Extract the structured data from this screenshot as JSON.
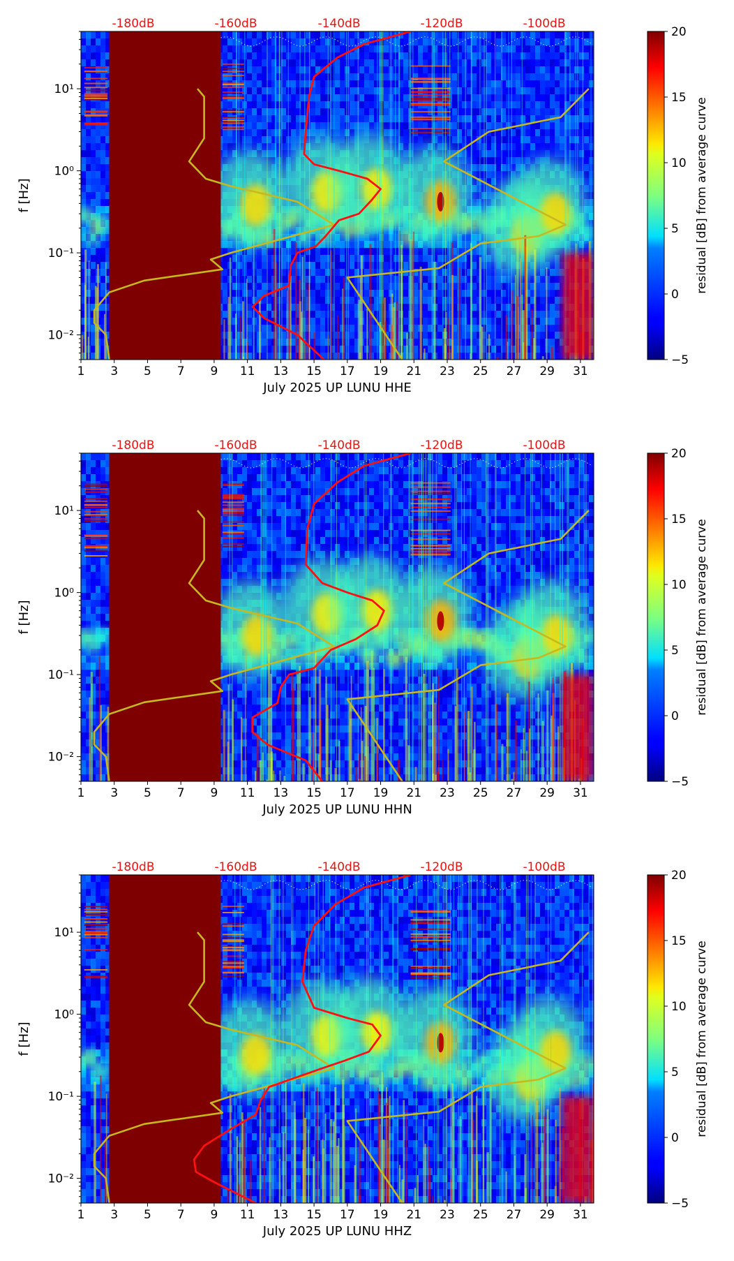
{
  "chart_data": [
    {
      "type": "heatmap",
      "xlabel": "July 2025 UP LUNU  HHE",
      "ylabel": "f [Hz]",
      "x_ticks": [
        "1",
        "3",
        "5",
        "7",
        "9",
        "11",
        "13",
        "15",
        "17",
        "19",
        "21",
        "23",
        "25",
        "27",
        "29",
        "31"
      ],
      "y_ticks": [
        "10⁻²",
        "10⁻¹",
        "10⁰",
        "10¹"
      ],
      "xlim": [
        1,
        31.8
      ],
      "ylim": [
        0.005,
        50
      ],
      "top_scale_labels": [
        "-180dB",
        "-160dB",
        "-140dB",
        "-120dB",
        "-100dB"
      ],
      "colorbar": {
        "label": "residual [dB] from average curve",
        "min": -5,
        "max": 20,
        "ticks": [
          "−5",
          "0",
          "5",
          "10",
          "15",
          "20"
        ]
      },
      "no_data_block": {
        "start_day": 2.7,
        "end_day": 9.4
      },
      "events": [
        {
          "day": 11.5,
          "f": 0.38,
          "strength": 0.7
        },
        {
          "day": 15.8,
          "f": 0.55,
          "strength": 0.6
        },
        {
          "day": 18.8,
          "f": 0.6,
          "strength": 0.6
        },
        {
          "day": 22.6,
          "f": 0.42,
          "strength": 1.0
        },
        {
          "day": 27.8,
          "f": 0.17,
          "strength": 0.8
        },
        {
          "day": 29.5,
          "f": 0.3,
          "strength": 0.75
        }
      ],
      "yellow_curve": [
        [
          8.0,
          10
        ],
        [
          8.4,
          8
        ],
        [
          8.4,
          2.5
        ],
        [
          7.5,
          1.3
        ],
        [
          8.5,
          0.8
        ],
        [
          10,
          0.65
        ],
        [
          14,
          0.42
        ],
        [
          16.2,
          0.22
        ],
        [
          10,
          0.1
        ],
        [
          8.8,
          0.083
        ],
        [
          9.5,
          0.063
        ],
        [
          4.8,
          0.046
        ],
        [
          2.7,
          0.033
        ],
        [
          1.8,
          0.02
        ],
        [
          1.8,
          0.014
        ],
        [
          2.5,
          0.01
        ],
        [
          2.7,
          0.005
        ]
      ],
      "yellow_curve_2": [
        [
          31.5,
          10
        ],
        [
          29.8,
          4.5
        ],
        [
          25.5,
          3
        ],
        [
          22.8,
          1.3
        ],
        [
          30.1,
          0.22
        ],
        [
          28.5,
          0.16
        ],
        [
          25,
          0.13
        ],
        [
          22.5,
          0.065
        ],
        [
          17,
          0.05
        ],
        [
          20.3,
          0.005
        ]
      ],
      "red_curve": [
        [
          20.8,
          50
        ],
        [
          18,
          35
        ],
        [
          16.4,
          24
        ],
        [
          15,
          14
        ],
        [
          14.7,
          8
        ],
        [
          14.5,
          3
        ],
        [
          14.4,
          1.6
        ],
        [
          15,
          1.2
        ],
        [
          16.5,
          1.0
        ],
        [
          18.2,
          0.8
        ],
        [
          19,
          0.6
        ],
        [
          18.5,
          0.45
        ],
        [
          17.7,
          0.3
        ],
        [
          16.5,
          0.25
        ],
        [
          15.7,
          0.16
        ],
        [
          15.1,
          0.12
        ],
        [
          14,
          0.1
        ],
        [
          13.6,
          0.07
        ],
        [
          13.5,
          0.04
        ],
        [
          12,
          0.03
        ],
        [
          11.3,
          0.022
        ],
        [
          12,
          0.016
        ],
        [
          14,
          0.01
        ],
        [
          15.6,
          0.005
        ]
      ]
    },
    {
      "type": "heatmap",
      "xlabel": "July 2025 UP LUNU  HHN",
      "ylabel": "f [Hz]",
      "x_ticks": [
        "1",
        "3",
        "5",
        "7",
        "9",
        "11",
        "13",
        "15",
        "17",
        "19",
        "21",
        "23",
        "25",
        "27",
        "29",
        "31"
      ],
      "y_ticks": [
        "10⁻²",
        "10⁻¹",
        "10⁰",
        "10¹"
      ],
      "xlim": [
        1,
        31.8
      ],
      "ylim": [
        0.005,
        50
      ],
      "top_scale_labels": [
        "-180dB",
        "-160dB",
        "-140dB",
        "-120dB",
        "-100dB"
      ],
      "colorbar": {
        "label": "residual [dB] from average curve",
        "min": -5,
        "max": 20,
        "ticks": [
          "−5",
          "0",
          "5",
          "10",
          "15",
          "20"
        ]
      },
      "no_data_block": {
        "start_day": 2.7,
        "end_day": 9.4
      },
      "events": [
        {
          "day": 11.6,
          "f": 0.3,
          "strength": 0.75
        },
        {
          "day": 15.8,
          "f": 0.55,
          "strength": 0.6
        },
        {
          "day": 18.8,
          "f": 0.6,
          "strength": 0.6
        },
        {
          "day": 22.6,
          "f": 0.45,
          "strength": 1.0
        },
        {
          "day": 27.9,
          "f": 0.16,
          "strength": 0.8
        },
        {
          "day": 29.6,
          "f": 0.3,
          "strength": 0.75
        }
      ],
      "yellow_curve": [
        [
          8.0,
          10
        ],
        [
          8.4,
          8
        ],
        [
          8.4,
          2.5
        ],
        [
          7.5,
          1.3
        ],
        [
          8.5,
          0.8
        ],
        [
          10,
          0.65
        ],
        [
          14,
          0.42
        ],
        [
          16.2,
          0.22
        ],
        [
          10,
          0.1
        ],
        [
          8.8,
          0.083
        ],
        [
          9.5,
          0.063
        ],
        [
          4.8,
          0.046
        ],
        [
          2.7,
          0.033
        ],
        [
          1.8,
          0.02
        ],
        [
          1.8,
          0.014
        ],
        [
          2.5,
          0.01
        ],
        [
          2.7,
          0.005
        ]
      ],
      "yellow_curve_2": [
        [
          31.5,
          10
        ],
        [
          29.8,
          4.5
        ],
        [
          25.5,
          3
        ],
        [
          22.8,
          1.3
        ],
        [
          30.1,
          0.22
        ],
        [
          28.5,
          0.16
        ],
        [
          25,
          0.13
        ],
        [
          22.5,
          0.065
        ],
        [
          17,
          0.05
        ],
        [
          20.3,
          0.005
        ]
      ],
      "red_curve": [
        [
          20.8,
          50
        ],
        [
          18,
          35
        ],
        [
          16.4,
          22
        ],
        [
          15,
          12
        ],
        [
          14.6,
          6
        ],
        [
          14.5,
          2.2
        ],
        [
          15.5,
          1.3
        ],
        [
          17,
          1.0
        ],
        [
          18.5,
          0.8
        ],
        [
          19.2,
          0.6
        ],
        [
          18.8,
          0.4
        ],
        [
          17.5,
          0.27
        ],
        [
          16,
          0.2
        ],
        [
          15,
          0.12
        ],
        [
          13.5,
          0.1
        ],
        [
          13,
          0.07
        ],
        [
          12.8,
          0.045
        ],
        [
          11.3,
          0.03
        ],
        [
          11.3,
          0.02
        ],
        [
          12.2,
          0.014
        ],
        [
          14.5,
          0.009
        ],
        [
          15.5,
          0.005
        ]
      ]
    },
    {
      "type": "heatmap",
      "xlabel": "July 2025 UP LUNU  HHZ",
      "ylabel": "f [Hz]",
      "x_ticks": [
        "1",
        "3",
        "5",
        "7",
        "9",
        "11",
        "13",
        "15",
        "17",
        "19",
        "21",
        "23",
        "25",
        "27",
        "29",
        "31"
      ],
      "y_ticks": [
        "10⁻²",
        "10⁻¹",
        "10⁰",
        "10¹"
      ],
      "xlim": [
        1,
        31.8
      ],
      "ylim": [
        0.005,
        50
      ],
      "top_scale_labels": [
        "-180dB",
        "-160dB",
        "-140dB",
        "-120dB",
        "-100dB"
      ],
      "colorbar": {
        "label": "residual [dB] from average curve",
        "min": -5,
        "max": 20,
        "ticks": [
          "−5",
          "0",
          "5",
          "10",
          "15",
          "20"
        ]
      },
      "no_data_block": {
        "start_day": 2.7,
        "end_day": 9.4
      },
      "events": [
        {
          "day": 11.5,
          "f": 0.32,
          "strength": 0.7
        },
        {
          "day": 15.8,
          "f": 0.55,
          "strength": 0.55
        },
        {
          "day": 18.8,
          "f": 0.6,
          "strength": 0.55
        },
        {
          "day": 22.6,
          "f": 0.45,
          "strength": 1.0
        },
        {
          "day": 28.0,
          "f": 0.16,
          "strength": 0.7
        },
        {
          "day": 29.5,
          "f": 0.35,
          "strength": 0.75
        }
      ],
      "yellow_curve": [
        [
          8.0,
          10
        ],
        [
          8.4,
          8
        ],
        [
          8.4,
          2.5
        ],
        [
          7.5,
          1.3
        ],
        [
          8.5,
          0.8
        ],
        [
          10,
          0.65
        ],
        [
          14,
          0.42
        ],
        [
          16.2,
          0.22
        ],
        [
          10,
          0.1
        ],
        [
          8.8,
          0.083
        ],
        [
          9.5,
          0.063
        ],
        [
          4.8,
          0.046
        ],
        [
          2.7,
          0.033
        ],
        [
          1.8,
          0.02
        ],
        [
          1.8,
          0.014
        ],
        [
          2.5,
          0.01
        ],
        [
          2.7,
          0.005
        ]
      ],
      "yellow_curve_2": [
        [
          31.5,
          10
        ],
        [
          29.8,
          4.5
        ],
        [
          25.5,
          3
        ],
        [
          22.8,
          1.3
        ],
        [
          30.1,
          0.22
        ],
        [
          28.5,
          0.16
        ],
        [
          25,
          0.13
        ],
        [
          22.5,
          0.065
        ],
        [
          17,
          0.05
        ],
        [
          20.3,
          0.005
        ]
      ],
      "red_curve": [
        [
          20.8,
          50
        ],
        [
          18,
          35
        ],
        [
          16.3,
          22
        ],
        [
          15,
          12
        ],
        [
          14.5,
          6
        ],
        [
          14.3,
          2.5
        ],
        [
          15,
          1.2
        ],
        [
          17,
          0.9
        ],
        [
          18.5,
          0.75
        ],
        [
          19,
          0.55
        ],
        [
          18.3,
          0.35
        ],
        [
          16.8,
          0.27
        ],
        [
          15.5,
          0.22
        ],
        [
          12.3,
          0.13
        ],
        [
          11.8,
          0.09
        ],
        [
          11.5,
          0.06
        ],
        [
          10,
          0.04
        ],
        [
          8.4,
          0.025
        ],
        [
          7.8,
          0.017
        ],
        [
          7.9,
          0.012
        ],
        [
          9,
          0.009
        ],
        [
          11.5,
          0.005
        ]
      ]
    }
  ]
}
